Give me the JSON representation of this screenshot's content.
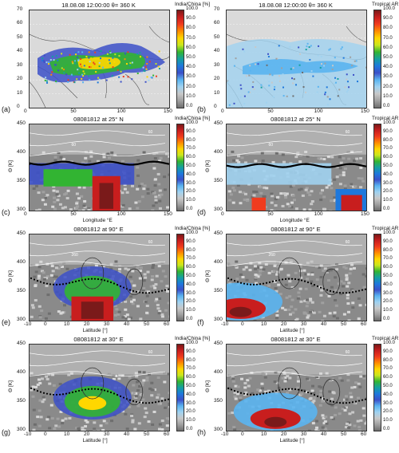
{
  "panels": [
    {
      "id": "a",
      "label": "(a)",
      "title": "18.08.08 12:00:00   θ= 360 K",
      "cbar_title": "India/China [%]",
      "kind": "map",
      "xticks": [
        "0",
        "50",
        "100",
        "150"
      ],
      "yticks": [
        "70",
        "60",
        "50",
        "40",
        "30",
        "20",
        "10",
        "0"
      ],
      "xlabel": "",
      "ylabel": ""
    },
    {
      "id": "b",
      "label": "(b)",
      "title": "18.08.08 12:00:00   θ= 360 K",
      "cbar_title": "Tropical AR [%]",
      "kind": "map",
      "xticks": [
        "0",
        "50",
        "100",
        "150"
      ],
      "yticks": [
        "70",
        "60",
        "50",
        "40",
        "30",
        "20",
        "10",
        "0"
      ],
      "xlabel": "",
      "ylabel": ""
    },
    {
      "id": "c",
      "label": "(c)",
      "title": "08081812 at 25° N",
      "cbar_title": "India/China [%]",
      "kind": "lon",
      "xticks": [
        "0",
        "50",
        "100",
        "150"
      ],
      "yticks": [
        "450",
        "400",
        "350",
        "300"
      ],
      "xlabel": "Longitude °E",
      "ylabel": "Θ [K]"
    },
    {
      "id": "d",
      "label": "(d)",
      "title": "08081812 at 25° N",
      "cbar_title": "Tropical AR [%]",
      "kind": "lon",
      "xticks": [
        "0",
        "50",
        "100",
        "150"
      ],
      "yticks": [
        "450",
        "400",
        "350",
        "300"
      ],
      "xlabel": "Longitude °E",
      "ylabel": "Θ [K]"
    },
    {
      "id": "e",
      "label": "(e)",
      "title": "08081812 at 90° E",
      "cbar_title": "India/China [%]",
      "kind": "lat",
      "xticks": [
        "-10",
        "0",
        "10",
        "20",
        "30",
        "40",
        "50",
        "60"
      ],
      "yticks": [
        "450",
        "400",
        "350",
        "300"
      ],
      "xlabel": "Latitude [°]",
      "ylabel": "Θ [K]"
    },
    {
      "id": "f",
      "label": "(f)",
      "title": "08081812 at 90° E",
      "cbar_title": "Tropical AR [%]",
      "kind": "lat",
      "xticks": [
        "-10",
        "0",
        "10",
        "20",
        "30",
        "40",
        "50",
        "60"
      ],
      "yticks": [
        "450",
        "400",
        "350",
        "300"
      ],
      "xlabel": "Latitude [°]",
      "ylabel": "Θ [K]"
    },
    {
      "id": "g",
      "label": "(g)",
      "title": "08081812 at 30° E",
      "cbar_title": "India/China [%]",
      "kind": "lat",
      "xticks": [
        "-10",
        "0",
        "10",
        "20",
        "30",
        "40",
        "50",
        "60"
      ],
      "yticks": [
        "450",
        "400",
        "350",
        "300"
      ],
      "xlabel": "Latitude [°]",
      "ylabel": "Θ [K]"
    },
    {
      "id": "h",
      "label": "(h)",
      "title": "08081812 at 30° E",
      "cbar_title": "Tropical AR [%]",
      "kind": "lat",
      "xticks": [
        "-10",
        "0",
        "10",
        "20",
        "30",
        "40",
        "50",
        "60"
      ],
      "yticks": [
        "450",
        "400",
        "350",
        "300"
      ],
      "xlabel": "Latitude [°]",
      "ylabel": "Θ [K]"
    }
  ],
  "colorbar": {
    "ticks": [
      "100.0",
      "90.0",
      "80.0",
      "70.0",
      "60.0",
      "50.0",
      "40.0",
      "30.0",
      "20.0",
      "10.0",
      "0.0"
    ],
    "colors": [
      "#7a1a1a",
      "#c81e1e",
      "#f03c1e",
      "#ff8c00",
      "#ffd700",
      "#c8e61e",
      "#32b432",
      "#14a0a0",
      "#1e78dc",
      "#3c50c8",
      "#5ab4f0",
      "#a0d2f0",
      "#c8c8c8",
      "#a0a0a0",
      "#6e6e6e"
    ]
  },
  "contour_labels": {
    "c": [
      "60",
      "60"
    ],
    "d": [
      "60",
      "60"
    ],
    "e": [
      "60",
      "260"
    ],
    "f": [
      "60",
      "260"
    ],
    "g": [
      "60"
    ],
    "h": [
      "60"
    ]
  }
}
